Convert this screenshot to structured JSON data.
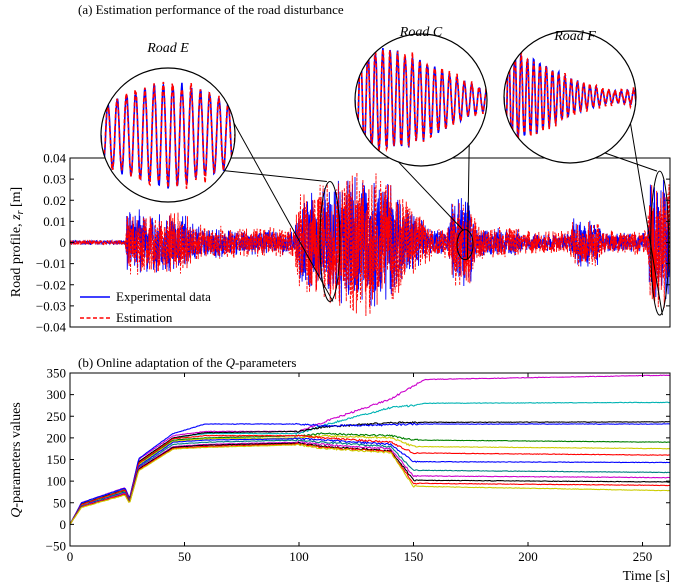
{
  "chart_data": [
    {
      "type": "line",
      "title": "(a) Estimation performance of the road disturbance",
      "ylabel": "Road profile, z_r [m]",
      "ylabel_parts": [
        "Road profile, ",
        "z",
        "r",
        " [m]"
      ],
      "xlim": [
        0,
        262
      ],
      "ylim": [
        -0.04,
        0.04
      ],
      "yticks": [
        -0.04,
        -0.03,
        -0.02,
        -0.01,
        0,
        0.01,
        0.02,
        0.03,
        0.04
      ],
      "ytick_labels": [
        "−0.04",
        "−0.03",
        "−0.02",
        "−0.01",
        "0",
        "0.01",
        "0.02",
        "0.03",
        "0.04"
      ],
      "grid": false,
      "legend_position": "bottom-left",
      "series": [
        {
          "name": "Experimental data",
          "color": "#0000ff",
          "style": "solid",
          "envelope": [
            [
              0,
              0.0012
            ],
            [
              24,
              0.0012
            ],
            [
              25,
              0.017
            ],
            [
              40,
              0.014
            ],
            [
              50,
              0.014
            ],
            [
              55,
              0.008
            ],
            [
              80,
              0.006
            ],
            [
              98,
              0.006
            ],
            [
              100,
              0.022
            ],
            [
              120,
              0.032
            ],
            [
              130,
              0.033
            ],
            [
              140,
              0.03
            ],
            [
              150,
              0.015
            ],
            [
              158,
              0.006
            ],
            [
              165,
              0.006
            ],
            [
              167,
              0.022
            ],
            [
              175,
              0.022
            ],
            [
              178,
              0.007
            ],
            [
              195,
              0.007
            ],
            [
              197,
              0.004
            ],
            [
              218,
              0.004
            ],
            [
              220,
              0.012
            ],
            [
              230,
              0.012
            ],
            [
              232,
              0.005
            ],
            [
              252,
              0.005
            ],
            [
              253,
              0.03
            ],
            [
              262,
              0.03
            ]
          ]
        },
        {
          "name": "Estimation",
          "color": "#ff0000",
          "style": "dashed",
          "envelope": [
            [
              0,
              0.0012
            ],
            [
              24,
              0.0012
            ],
            [
              25,
              0.016
            ],
            [
              40,
              0.015
            ],
            [
              50,
              0.015
            ],
            [
              55,
              0.009
            ],
            [
              80,
              0.007
            ],
            [
              98,
              0.008
            ],
            [
              100,
              0.025
            ],
            [
              120,
              0.034
            ],
            [
              130,
              0.036
            ],
            [
              140,
              0.034
            ],
            [
              150,
              0.016
            ],
            [
              158,
              0.008
            ],
            [
              165,
              0.008
            ],
            [
              167,
              0.022
            ],
            [
              175,
              0.022
            ],
            [
              178,
              0.008
            ],
            [
              195,
              0.008
            ],
            [
              197,
              0.006
            ],
            [
              218,
              0.006
            ],
            [
              220,
              0.012
            ],
            [
              230,
              0.012
            ],
            [
              232,
              0.006
            ],
            [
              252,
              0.006
            ],
            [
              253,
              0.032
            ],
            [
              262,
              0.032
            ]
          ]
        }
      ],
      "annotations": [
        "Road E",
        "Road C",
        "Road F"
      ],
      "zoom_regions": [
        {
          "label": "Road E",
          "x_center": 113.5,
          "y_center": 0.0005
        },
        {
          "label": "Road C",
          "x_center": 172.5,
          "y_center": -0.001
        },
        {
          "label": "Road F",
          "x_center": 257.5,
          "y_center": -0.0003
        }
      ]
    },
    {
      "type": "line",
      "title": "(b) Online adaptation of the Q-parameters",
      "title_parts": [
        "(b) Online adaptation of the ",
        "Q",
        "-parameters"
      ],
      "xlabel": "Time [s]",
      "ylabel": "Q-parameters values",
      "ylabel_parts": [
        "Q",
        "-parameters values"
      ],
      "xlim": [
        0,
        262
      ],
      "ylim": [
        -50,
        350
      ],
      "xticks": [
        0,
        50,
        100,
        150,
        200,
        250
      ],
      "xtick_labels": [
        "0",
        "50",
        "100",
        "150",
        "200",
        "250"
      ],
      "yticks": [
        -50,
        0,
        50,
        100,
        150,
        200,
        250,
        300,
        350
      ],
      "ytick_labels": [
        "−50",
        "0",
        "50",
        "100",
        "150",
        "200",
        "250",
        "300",
        "350"
      ],
      "grid": false,
      "series": [
        {
          "color": "#cc00cc",
          "values": [
            [
              0,
              0
            ],
            [
              5,
              50
            ],
            [
              24,
              85
            ],
            [
              26,
              60
            ],
            [
              30,
              150
            ],
            [
              45,
              205
            ],
            [
              59,
              215
            ],
            [
              100,
              215
            ],
            [
              110,
              235
            ],
            [
              140,
              290
            ],
            [
              150,
              320
            ],
            [
              155,
              335
            ],
            [
              262,
              345
            ]
          ]
        },
        {
          "color": "#00b3b3",
          "values": [
            [
              0,
              0
            ],
            [
              5,
              48
            ],
            [
              24,
              82
            ],
            [
              26,
              58
            ],
            [
              30,
              145
            ],
            [
              45,
              200
            ],
            [
              59,
              210
            ],
            [
              100,
              210
            ],
            [
              110,
              228
            ],
            [
              140,
              270
            ],
            [
              150,
              275
            ],
            [
              155,
              280
            ],
            [
              262,
              282
            ]
          ]
        },
        {
          "color": "#000000",
          "values": [
            [
              0,
              0
            ],
            [
              5,
              47
            ],
            [
              24,
              80
            ],
            [
              26,
              57
            ],
            [
              30,
              145
            ],
            [
              45,
              200
            ],
            [
              59,
              212
            ],
            [
              100,
              215
            ],
            [
              110,
              225
            ],
            [
              140,
              235
            ],
            [
              155,
              236
            ],
            [
              262,
              237
            ]
          ]
        },
        {
          "color": "#0000ff",
          "values": [
            [
              0,
              0
            ],
            [
              5,
              50
            ],
            [
              24,
              84
            ],
            [
              26,
              60
            ],
            [
              30,
              152
            ],
            [
              45,
              210
            ],
            [
              59,
              232
            ],
            [
              100,
              232
            ],
            [
              110,
              228
            ],
            [
              140,
              230
            ],
            [
              150,
              232
            ],
            [
              262,
              232
            ]
          ]
        },
        {
          "color": "#008000",
          "values": [
            [
              0,
              0
            ],
            [
              5,
              45
            ],
            [
              24,
              78
            ],
            [
              26,
              55
            ],
            [
              30,
              140
            ],
            [
              45,
              195
            ],
            [
              59,
              200
            ],
            [
              100,
              205
            ],
            [
              110,
              210
            ],
            [
              140,
              205
            ],
            [
              150,
              195
            ],
            [
              262,
              190
            ]
          ]
        },
        {
          "color": "#cccc00",
          "values": [
            [
              0,
              0
            ],
            [
              5,
              44
            ],
            [
              24,
              76
            ],
            [
              26,
              54
            ],
            [
              30,
              138
            ],
            [
              45,
              192
            ],
            [
              59,
              198
            ],
            [
              100,
              200
            ],
            [
              110,
              205
            ],
            [
              140,
              200
            ],
            [
              150,
              180
            ],
            [
              262,
              175
            ]
          ]
        },
        {
          "color": "#ff0000",
          "values": [
            [
              0,
              0
            ],
            [
              5,
              46
            ],
            [
              24,
              80
            ],
            [
              26,
              56
            ],
            [
              30,
              142
            ],
            [
              45,
              198
            ],
            [
              59,
              205
            ],
            [
              100,
              205
            ],
            [
              110,
              200
            ],
            [
              140,
              190
            ],
            [
              150,
              165
            ],
            [
              262,
              160
            ]
          ]
        },
        {
          "color": "#0000ff",
          "values": [
            [
              0,
              0
            ],
            [
              5,
              43
            ],
            [
              24,
              75
            ],
            [
              26,
              53
            ],
            [
              30,
              135
            ],
            [
              45,
              190
            ],
            [
              59,
              195
            ],
            [
              100,
              198
            ],
            [
              110,
              195
            ],
            [
              140,
              185
            ],
            [
              150,
              145
            ],
            [
              262,
              143
            ]
          ]
        },
        {
          "color": "#008080",
          "values": [
            [
              0,
              0
            ],
            [
              5,
              42
            ],
            [
              24,
              74
            ],
            [
              26,
              52
            ],
            [
              30,
              132
            ],
            [
              45,
              185
            ],
            [
              59,
              190
            ],
            [
              100,
              195
            ],
            [
              110,
              190
            ],
            [
              140,
              180
            ],
            [
              150,
              125
            ],
            [
              262,
              120
            ]
          ]
        },
        {
          "color": "#cc00cc",
          "values": [
            [
              0,
              0
            ],
            [
              5,
              41
            ],
            [
              24,
              72
            ],
            [
              26,
              50
            ],
            [
              30,
              130
            ],
            [
              45,
              180
            ],
            [
              59,
              185
            ],
            [
              100,
              190
            ],
            [
              110,
              185
            ],
            [
              140,
              175
            ],
            [
              150,
              112
            ],
            [
              262,
              108
            ]
          ]
        },
        {
          "color": "#000000",
          "values": [
            [
              0,
              0
            ],
            [
              5,
              40
            ],
            [
              24,
              70
            ],
            [
              26,
              50
            ],
            [
              30,
              128
            ],
            [
              45,
              178
            ],
            [
              59,
              183
            ],
            [
              100,
              188
            ],
            [
              110,
              180
            ],
            [
              140,
              170
            ],
            [
              150,
              102
            ],
            [
              262,
              98
            ]
          ]
        },
        {
          "color": "#ff0000",
          "values": [
            [
              0,
              0
            ],
            [
              5,
              40
            ],
            [
              24,
              70
            ],
            [
              26,
              49
            ],
            [
              30,
              126
            ],
            [
              45,
              176
            ],
            [
              59,
              180
            ],
            [
              100,
              186
            ],
            [
              110,
              178
            ],
            [
              140,
              168
            ],
            [
              150,
              95
            ],
            [
              262,
              90
            ]
          ]
        },
        {
          "color": "#cccc00",
          "values": [
            [
              0,
              0
            ],
            [
              5,
              39
            ],
            [
              24,
              68
            ],
            [
              26,
              48
            ],
            [
              30,
              124
            ],
            [
              45,
              174
            ],
            [
              59,
              178
            ],
            [
              100,
              184
            ],
            [
              110,
              176
            ],
            [
              140,
              166
            ],
            [
              150,
              88
            ],
            [
              262,
              78
            ]
          ]
        }
      ]
    }
  ]
}
